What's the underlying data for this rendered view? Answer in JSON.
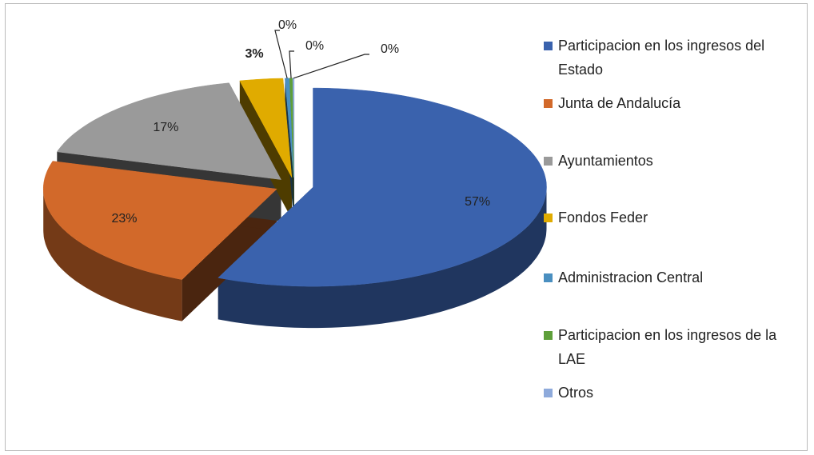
{
  "chart_data": {
    "type": "pie",
    "categories": [
      "Participacion en los ingresos del Estado",
      "Junta de Andalucía",
      "Ayuntamientos",
      "Fondos Feder",
      "Administracion Central",
      "Participacion en los ingresos de la LAE",
      "Otros"
    ],
    "values": [
      57,
      23,
      17,
      3,
      0.3,
      0.2,
      0.1
    ],
    "value_labels": [
      "57%",
      "23%",
      "17%",
      "3%",
      "0%",
      "0%",
      "0%"
    ],
    "colors": [
      "#3a62ad",
      "#d2692a",
      "#9a9a9a",
      "#e0ab00",
      "#4a8fc0",
      "#5e9f3a",
      "#8eaadb"
    ],
    "legend": "right"
  }
}
